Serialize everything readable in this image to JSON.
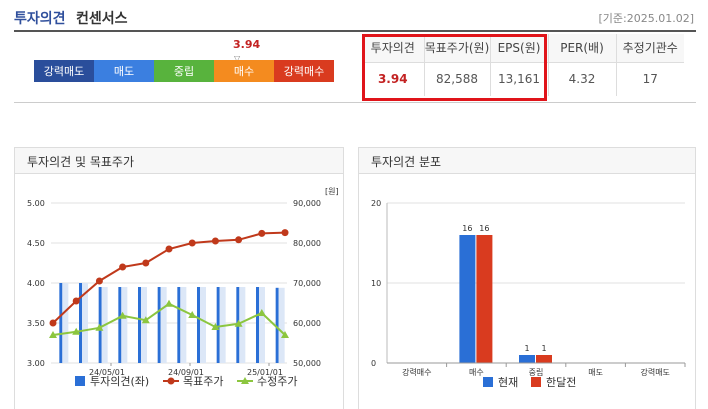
{
  "header": {
    "title_strong": "투자의견",
    "title_rest": "컨센서스",
    "date": "[기준:2025.01.02]"
  },
  "scale": {
    "marker_value": "3.94",
    "segments": [
      {
        "label": "강력매도",
        "color": "#2a4e9b"
      },
      {
        "label": "매도",
        "color": "#3b7fe0"
      },
      {
        "label": "중립",
        "color": "#58b33d"
      },
      {
        "label": "매수",
        "color": "#f48b1f"
      },
      {
        "label": "강력매수",
        "color": "#d93b1f"
      }
    ]
  },
  "consensus_table": {
    "headers": [
      "투자의견",
      "목표주가(원)",
      "EPS(원)",
      "PER(배)",
      "추정기관수"
    ],
    "values": [
      "3.94",
      "82,588",
      "13,161",
      "4.32",
      "17"
    ]
  },
  "left_panel": {
    "title": "투자의견 및 목표주가"
  },
  "right_panel": {
    "title": "투자의견 분포"
  },
  "chart_data": [
    {
      "type": "bar+line",
      "title": "투자의견 및 목표주가",
      "y_left_unit": "",
      "y_right_unit": "[원]",
      "y_left_ticks": [
        "5.00",
        "4.50",
        "4.00",
        "3.50",
        "3.00"
      ],
      "y_right_ticks": [
        "90,000",
        "80,000",
        "70,000",
        "60,000",
        "50,000"
      ],
      "ylim_left": [
        3.0,
        5.0
      ],
      "ylim_right": [
        50000,
        90000
      ],
      "x_tick_labels": [
        "24/05/01",
        "24/09/01",
        "25/01/01"
      ],
      "series": [
        {
          "name": "투자의견(좌)",
          "type": "bar",
          "color": "#2a6fd6",
          "values": [
            4.0,
            4.0,
            3.95,
            3.95,
            3.95,
            3.95,
            3.95,
            3.95,
            3.95,
            3.95,
            3.95,
            3.94
          ]
        },
        {
          "name": "목표주가",
          "type": "line",
          "color": "#c0391b",
          "values": [
            60000,
            65500,
            70500,
            74000,
            75000,
            78500,
            80000,
            80500,
            80800,
            82400,
            82588
          ]
        },
        {
          "name": "수정주가",
          "type": "line",
          "color": "#8cc63f",
          "values": [
            57000,
            57800,
            58800,
            61800,
            60700,
            64800,
            62000,
            59000,
            59800,
            62500,
            57000
          ]
        }
      ]
    },
    {
      "type": "bar",
      "title": "투자의견 분포",
      "categories": [
        "강력매수",
        "매수",
        "중립",
        "매도",
        "강력매도"
      ],
      "ylim": [
        0,
        20
      ],
      "y_ticks": [
        "20",
        "10",
        "0"
      ],
      "series": [
        {
          "name": "현재",
          "color": "#2a6fd6",
          "values": [
            0,
            16,
            1,
            0,
            0
          ]
        },
        {
          "name": "한달전",
          "color": "#d93b1f",
          "values": [
            0,
            16,
            1,
            0,
            0
          ]
        }
      ]
    }
  ]
}
